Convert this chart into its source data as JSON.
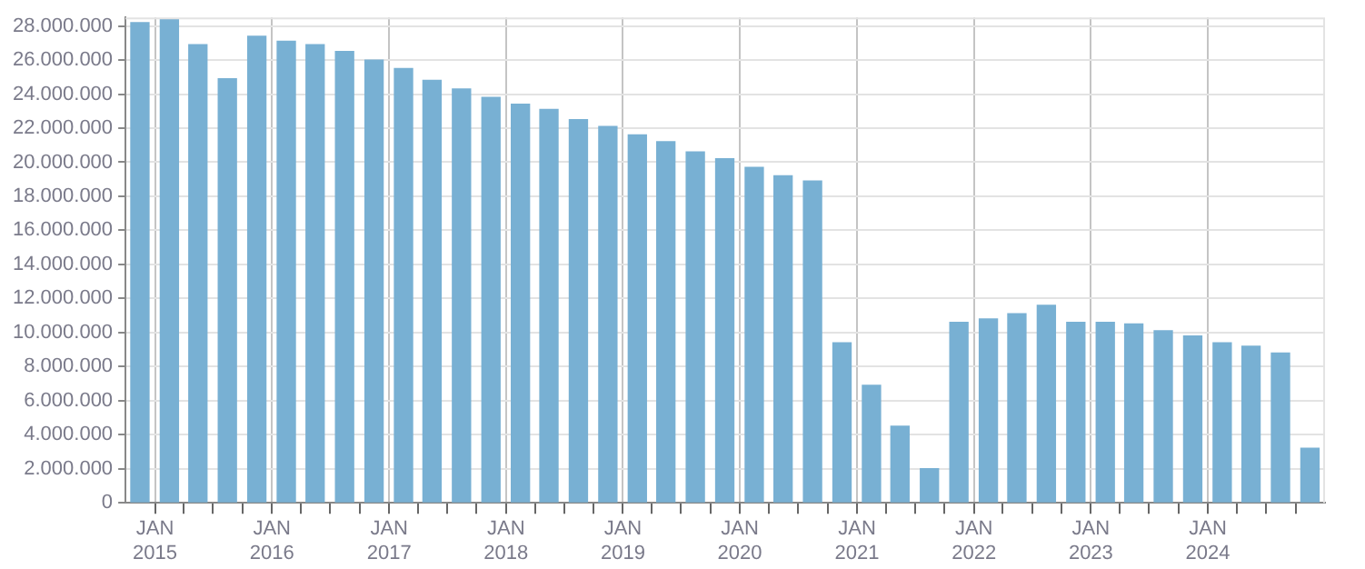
{
  "chart_data": {
    "type": "bar",
    "color": "#78b0d3",
    "x": [
      "2014-11-15",
      "2015-02-15",
      "2015-05-15",
      "2015-08-15",
      "2015-11-15",
      "2016-02-15",
      "2016-05-15",
      "2016-08-15",
      "2016-11-15",
      "2017-02-15",
      "2017-05-15",
      "2017-08-15",
      "2017-11-15",
      "2018-02-15",
      "2018-05-15",
      "2018-08-15",
      "2018-11-15",
      "2019-02-15",
      "2019-05-15",
      "2019-08-15",
      "2019-11-15",
      "2020-02-15",
      "2020-05-15",
      "2020-08-15",
      "2020-11-15",
      "2021-02-15",
      "2021-05-15",
      "2021-08-15",
      "2021-11-15",
      "2022-02-15",
      "2022-05-15",
      "2022-08-15",
      "2022-11-15",
      "2023-02-15",
      "2023-05-15",
      "2023-08-15",
      "2023-11-15",
      "2024-02-15",
      "2024-05-15",
      "2024-08-15",
      "2024-11-15"
    ],
    "values": [
      28200000,
      28400000,
      26900000,
      24900000,
      27400000,
      27100000,
      26900000,
      26500000,
      26000000,
      25500000,
      24800000,
      24300000,
      23800000,
      23400000,
      23100000,
      22500000,
      22100000,
      21600000,
      21200000,
      20600000,
      20200000,
      19700000,
      19200000,
      18900000,
      9400000,
      6900000,
      4500000,
      2000000,
      10600000,
      10800000,
      11100000,
      11600000,
      10600000,
      10600000,
      10500000,
      10100000,
      9800000,
      9400000,
      9200000,
      8800000,
      3200000
    ],
    "xlim": [
      "2014-10-01",
      "2025-01-01"
    ],
    "xticks": [
      {
        "value": "2015-01-01",
        "label": "JAN 2015"
      },
      {
        "value": "2015-04-01",
        "label": null
      },
      {
        "value": "2015-07-01",
        "label": null
      },
      {
        "value": "2015-10-01",
        "label": null
      },
      {
        "value": "2016-01-01",
        "label": "JAN 2016"
      },
      {
        "value": "2016-04-01",
        "label": null
      },
      {
        "value": "2016-07-01",
        "label": null
      },
      {
        "value": "2016-10-01",
        "label": null
      },
      {
        "value": "2017-01-01",
        "label": "JAN 2017"
      },
      {
        "value": "2017-04-01",
        "label": null
      },
      {
        "value": "2017-07-01",
        "label": null
      },
      {
        "value": "2017-10-01",
        "label": null
      },
      {
        "value": "2018-01-01",
        "label": "JAN 2018"
      },
      {
        "value": "2018-04-01",
        "label": null
      },
      {
        "value": "2018-07-01",
        "label": null
      },
      {
        "value": "2018-10-01",
        "label": null
      },
      {
        "value": "2019-01-01",
        "label": "JAN 2019"
      },
      {
        "value": "2019-04-01",
        "label": null
      },
      {
        "value": "2019-07-01",
        "label": null
      },
      {
        "value": "2019-10-01",
        "label": null
      },
      {
        "value": "2020-01-01",
        "label": "JAN 2020"
      },
      {
        "value": "2020-04-01",
        "label": null
      },
      {
        "value": "2020-07-01",
        "label": null
      },
      {
        "value": "2020-10-01",
        "label": null
      },
      {
        "value": "2021-01-01",
        "label": "JAN 2021"
      },
      {
        "value": "2021-04-01",
        "label": null
      },
      {
        "value": "2021-07-01",
        "label": null
      },
      {
        "value": "2021-10-01",
        "label": null
      },
      {
        "value": "2022-01-01",
        "label": "JAN 2022"
      },
      {
        "value": "2022-04-01",
        "label": null
      },
      {
        "value": "2022-07-01",
        "label": null
      },
      {
        "value": "2022-10-01",
        "label": null
      },
      {
        "value": "2023-01-01",
        "label": "JAN 2023"
      },
      {
        "value": "2023-04-01",
        "label": null
      },
      {
        "value": "2023-07-01",
        "label": null
      },
      {
        "value": "2023-10-01",
        "label": null
      },
      {
        "value": "2024-01-01",
        "label": "JAN 2024"
      },
      {
        "value": "2024-04-01",
        "label": null
      },
      {
        "value": "2024-07-01",
        "label": null
      },
      {
        "value": "2024-10-01",
        "label": null
      }
    ],
    "ylim": [
      0,
      28500000
    ],
    "yticks": [
      {
        "value": 0,
        "label": "0"
      },
      {
        "value": 2000000,
        "label": "2.000.000"
      },
      {
        "value": 4000000,
        "label": "4.000.000"
      },
      {
        "value": 6000000,
        "label": "6.000.000"
      },
      {
        "value": 8000000,
        "label": "8.000.000"
      },
      {
        "value": 10000000,
        "label": "10.000.000"
      },
      {
        "value": 12000000,
        "label": "12.000.000"
      },
      {
        "value": 14000000,
        "label": "14.000.000"
      },
      {
        "value": 16000000,
        "label": "16.000.000"
      },
      {
        "value": 18000000,
        "label": "18.000.000"
      },
      {
        "value": 20000000,
        "label": "20.000.000"
      },
      {
        "value": 22000000,
        "label": "22.000.000"
      },
      {
        "value": 24000000,
        "label": "24.000.000"
      },
      {
        "value": 26000000,
        "label": "26.000.000"
      },
      {
        "value": 28000000,
        "label": "28.000.000"
      }
    ],
    "grid": true,
    "legend": false
  }
}
